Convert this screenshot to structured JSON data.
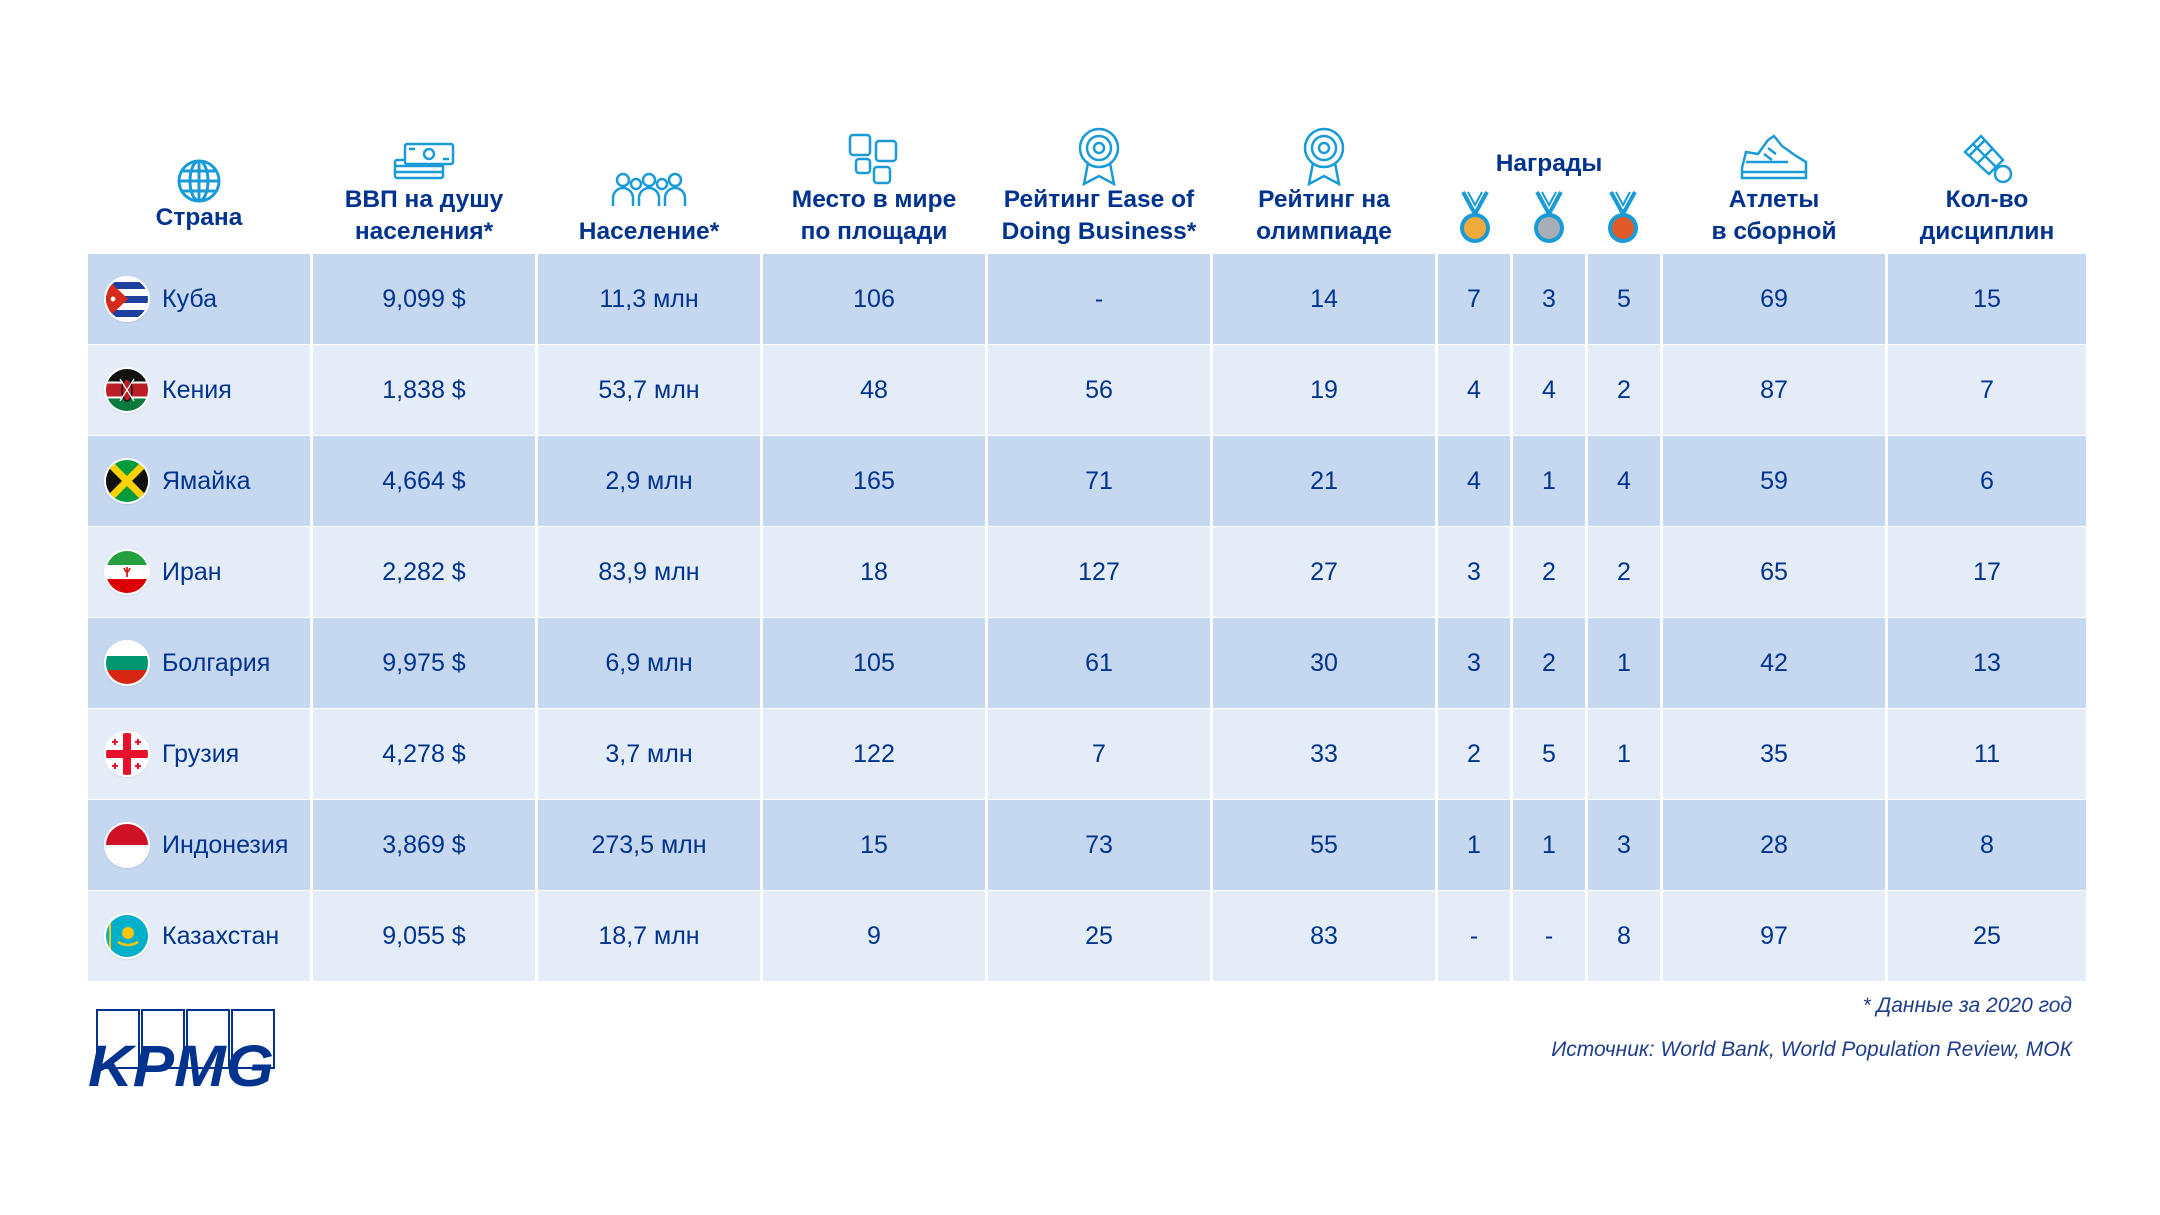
{
  "headers": {
    "country": "Страна",
    "gdp": "ВВП на душу\nнаселения*",
    "population": "Население*",
    "area_rank": "Место в мире\nпо площади",
    "ease_rank": "Рейтинг Ease of\nDoing Business*",
    "olympic_rank": "Рейтинг на\nолимпиаде",
    "awards": "Награды",
    "athletes": "Атлеты\nв сборной",
    "disciplines": "Кол-во\nдисциплин"
  },
  "icons": {
    "country": "globe-icon",
    "gdp": "money-stack-icon",
    "population": "people-group-icon",
    "area_rank": "squares-icon",
    "ease_rank": "rosette-icon",
    "olympic_rank": "rosette-icon",
    "athletes": "sneaker-icon",
    "disciplines": "shuttlecock-icon"
  },
  "medal_colors": {
    "gold": "#f2a93b",
    "silver": "#a6aeb8",
    "bronze": "#e05a2a"
  },
  "colors": {
    "brand": "#00338d",
    "row_dark": "#c6d8ef",
    "row_light": "#e4ecf8",
    "icon": "#1a9bd7"
  },
  "rows": [
    {
      "country": "Куба",
      "flag": "cuba",
      "gdp": "9,099 $",
      "population": "11,3 млн",
      "area_rank": "106",
      "ease_rank": "-",
      "olympic_rank": "14",
      "gold": "7",
      "silver": "3",
      "bronze": "5",
      "athletes": "69",
      "disciplines": "15"
    },
    {
      "country": "Кения",
      "flag": "kenya",
      "gdp": "1,838 $",
      "population": "53,7 млн",
      "area_rank": "48",
      "ease_rank": "56",
      "olympic_rank": "19",
      "gold": "4",
      "silver": "4",
      "bronze": "2",
      "athletes": "87",
      "disciplines": "7"
    },
    {
      "country": "Ямайка",
      "flag": "jamaica",
      "gdp": "4,664 $",
      "population": "2,9 млн",
      "area_rank": "165",
      "ease_rank": "71",
      "olympic_rank": "21",
      "gold": "4",
      "silver": "1",
      "bronze": "4",
      "athletes": "59",
      "disciplines": "6"
    },
    {
      "country": "Иран",
      "flag": "iran",
      "gdp": "2,282 $",
      "population": "83,9 млн",
      "area_rank": "18",
      "ease_rank": "127",
      "olympic_rank": "27",
      "gold": "3",
      "silver": "2",
      "bronze": "2",
      "athletes": "65",
      "disciplines": "17"
    },
    {
      "country": "Болгария",
      "flag": "bulgaria",
      "gdp": "9,975 $",
      "population": "6,9 млн",
      "area_rank": "105",
      "ease_rank": "61",
      "olympic_rank": "30",
      "gold": "3",
      "silver": "2",
      "bronze": "1",
      "athletes": "42",
      "disciplines": "13"
    },
    {
      "country": "Грузия",
      "flag": "georgia",
      "gdp": "4,278 $",
      "population": "3,7 млн",
      "area_rank": "122",
      "ease_rank": "7",
      "olympic_rank": "33",
      "gold": "2",
      "silver": "5",
      "bronze": "1",
      "athletes": "35",
      "disciplines": "11"
    },
    {
      "country": "Индонезия",
      "flag": "indonesia",
      "gdp": "3,869 $",
      "population": "273,5 млн",
      "area_rank": "15",
      "ease_rank": "73",
      "olympic_rank": "55",
      "gold": "1",
      "silver": "1",
      "bronze": "3",
      "athletes": "28",
      "disciplines": "8"
    },
    {
      "country": "Казахстан",
      "flag": "kazakhstan",
      "gdp": "9,055 $",
      "population": "18,7 млн",
      "area_rank": "9",
      "ease_rank": "25",
      "olympic_rank": "83",
      "gold": "-",
      "silver": "-",
      "bronze": "8",
      "athletes": "97",
      "disciplines": "25"
    }
  ],
  "footer": {
    "note": "* Данные за 2020 год",
    "source": "Источник: World Bank, World Population Review, МОК",
    "logo_text": "KPMG"
  }
}
